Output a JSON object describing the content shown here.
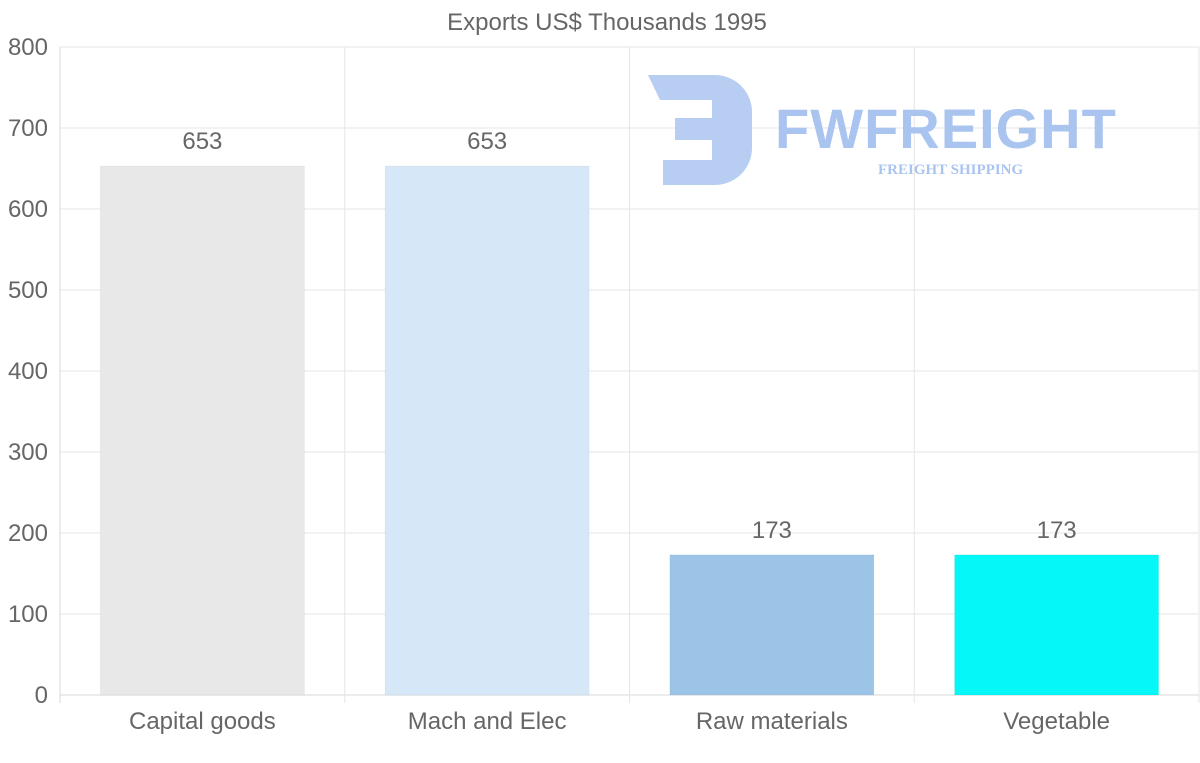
{
  "chart_data": {
    "type": "bar",
    "title": "Exports US$ Thousands 1995",
    "categories": [
      "Capital goods",
      "Mach and Elec",
      "Raw materials",
      "Vegetable"
    ],
    "values": [
      653,
      653,
      173,
      173
    ],
    "value_labels": [
      "653",
      "653",
      "173",
      "173"
    ],
    "colors": [
      "#e8e8e8",
      "#d6e8f8",
      "#9bc4e6",
      "#05f7f7"
    ],
    "ylim": [
      0,
      800
    ],
    "yticks": [
      0,
      100,
      200,
      300,
      400,
      500,
      600,
      700,
      800
    ],
    "ytick_labels": [
      "0",
      "100",
      "200",
      "300",
      "400",
      "500",
      "600",
      "700",
      "800"
    ],
    "xlabel": "",
    "ylabel": "",
    "grid": true
  },
  "watermark": {
    "brand": "FWFREIGHT",
    "tagline": "FREIGHT SHIPPING",
    "color": "#aac4f0"
  }
}
